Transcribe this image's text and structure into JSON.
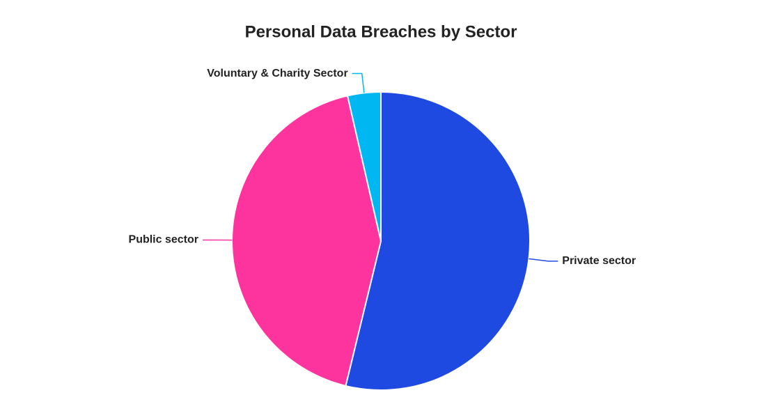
{
  "chart_data": {
    "type": "pie",
    "title": "Personal Data Breaches by Sector",
    "categories": [
      "Private sector",
      "Public sector",
      "Voluntary & Charity Sector"
    ],
    "values": [
      53.8,
      42.6,
      3.6
    ],
    "colors": [
      "#1f4ae2",
      "#fd349d",
      "#01b7f1"
    ]
  }
}
